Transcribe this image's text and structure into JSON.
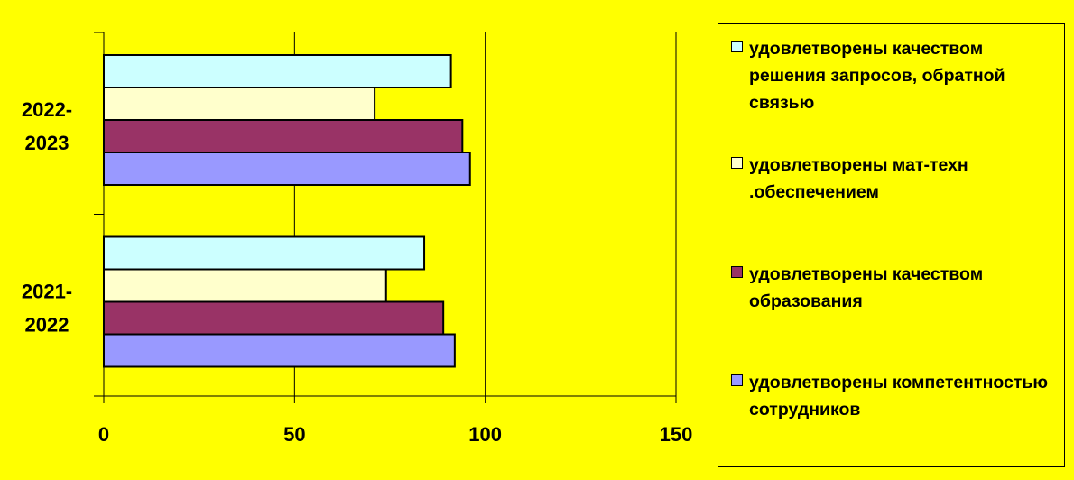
{
  "chart_data": {
    "type": "bar",
    "orientation": "horizontal",
    "categories": [
      "2022-\n2023",
      "2021-\n2022"
    ],
    "category_lines": [
      [
        "2022-",
        "2023"
      ],
      [
        "2021-",
        "2022"
      ]
    ],
    "series": [
      {
        "name": "удовлетворены качеством решения запросов, обратной связью",
        "color": "#ccffff",
        "values": [
          91,
          84
        ]
      },
      {
        "name": "удовлетворены мат-техн .обеспечением",
        "color": "#ffffcc",
        "values": [
          71,
          74
        ]
      },
      {
        "name": "удовлетворены качеством образования",
        "color": "#993366",
        "values": [
          94,
          89
        ]
      },
      {
        "name": "удовлетворены компетентностью сотрудников",
        "color": "#9999ff",
        "values": [
          96,
          92
        ]
      }
    ],
    "xlim": [
      0,
      150
    ],
    "xticks": [
      "0",
      "50",
      "100",
      "150"
    ],
    "grid": true,
    "legend_position": "right",
    "background": "#ffff00"
  },
  "legend": {
    "items": [
      {
        "label": "удовлетворены качеством решения запросов, обратной связью",
        "color": "#ccffff"
      },
      {
        "label": "удовлетворены мат-техн .обеспечением",
        "color": "#ffffcc"
      },
      {
        "label": "удовлетворены качеством образования",
        "color": "#993366"
      },
      {
        "label": "удовлетворены компетентностью сотрудников",
        "color": "#9999ff"
      }
    ]
  }
}
